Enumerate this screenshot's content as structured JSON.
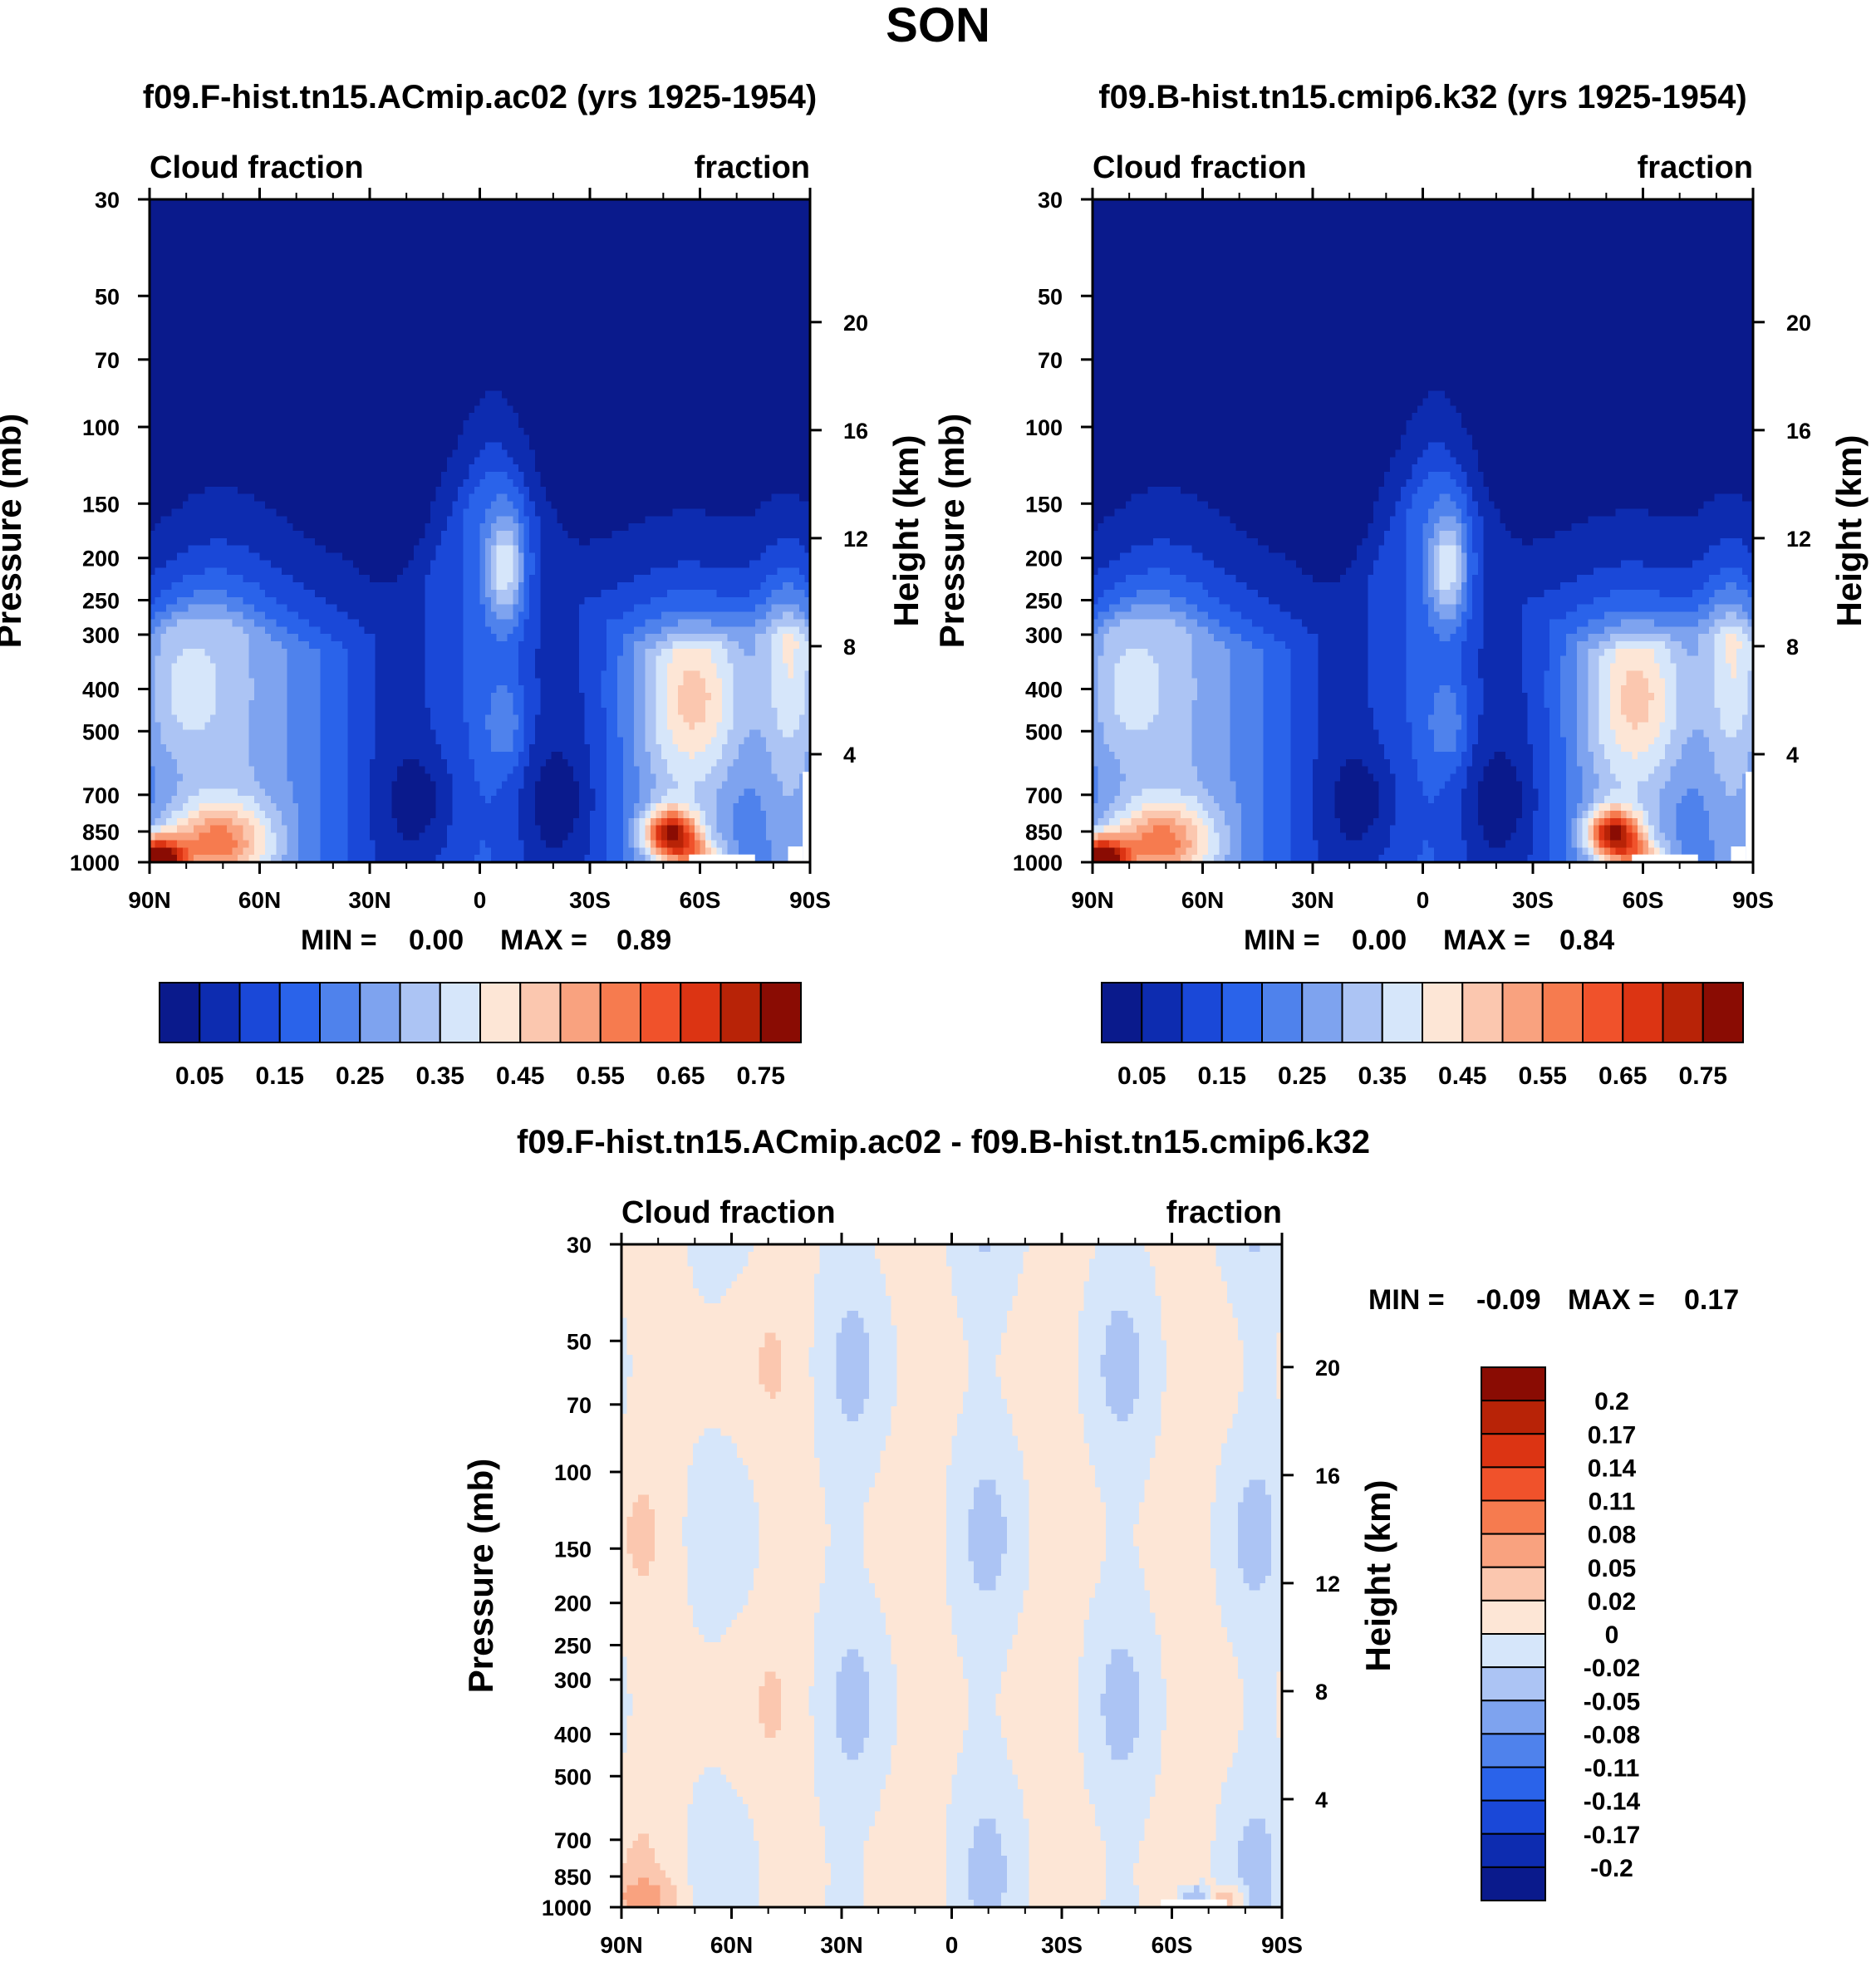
{
  "figure_title": "SON",
  "chart_data": [
    {
      "type": "heatmap",
      "id": "panel_a",
      "title": "f09.F-hist.tn15.ACmip.ac02 (yrs 1925-1954)",
      "left_label": "Cloud fraction",
      "right_label": "fraction",
      "ylabel": "Pressure (mb)",
      "ylabel_right": "Height (km)",
      "x_ticks": [
        "90N",
        "60N",
        "30N",
        "0",
        "30S",
        "60S",
        "90S"
      ],
      "x_range": [
        90,
        -90
      ],
      "pressure_ticks": [
        30,
        50,
        70,
        100,
        150,
        200,
        250,
        300,
        400,
        500,
        700,
        850,
        1000
      ],
      "height_ticks": [
        20,
        16,
        12,
        8,
        4
      ],
      "min_label": "MIN =",
      "min_value": "0.00",
      "max_label": "MAX =",
      "max_value": "0.89",
      "colorbar_labels": [
        "0.05",
        "0.15",
        "0.25",
        "0.35",
        "0.45",
        "0.55",
        "0.65",
        "0.75"
      ],
      "contour_levels": [
        0.05,
        0.1,
        0.15,
        0.2,
        0.25,
        0.3,
        0.35,
        0.4,
        0.45,
        0.5,
        0.55,
        0.6,
        0.65,
        0.7,
        0.75
      ]
    },
    {
      "type": "heatmap",
      "id": "panel_b",
      "title": "f09.B-hist.tn15.cmip6.k32 (yrs 1925-1954)",
      "left_label": "Cloud fraction",
      "right_label": "fraction",
      "ylabel": "Pressure (mb)",
      "ylabel_right": "Height (km)",
      "x_ticks": [
        "90N",
        "60N",
        "30N",
        "0",
        "30S",
        "60S",
        "90S"
      ],
      "x_range": [
        90,
        -90
      ],
      "pressure_ticks": [
        30,
        50,
        70,
        100,
        150,
        200,
        250,
        300,
        400,
        500,
        700,
        850,
        1000
      ],
      "height_ticks": [
        20,
        16,
        12,
        8,
        4
      ],
      "min_label": "MIN =",
      "min_value": "0.00",
      "max_label": "MAX =",
      "max_value": "0.84",
      "colorbar_labels": [
        "0.05",
        "0.15",
        "0.25",
        "0.35",
        "0.45",
        "0.55",
        "0.65",
        "0.75"
      ],
      "contour_levels": [
        0.05,
        0.1,
        0.15,
        0.2,
        0.25,
        0.3,
        0.35,
        0.4,
        0.45,
        0.5,
        0.55,
        0.6,
        0.65,
        0.7,
        0.75
      ]
    },
    {
      "type": "heatmap",
      "id": "panel_diff",
      "title": "f09.F-hist.tn15.ACmip.ac02 - f09.B-hist.tn15.cmip6.k32",
      "left_label": "Cloud fraction",
      "right_label": "fraction",
      "ylabel": "Pressure (mb)",
      "ylabel_right": "Height (km)",
      "x_ticks": [
        "90N",
        "60N",
        "30N",
        "0",
        "30S",
        "60S",
        "90S"
      ],
      "x_range": [
        90,
        -90
      ],
      "pressure_ticks": [
        30,
        50,
        70,
        100,
        150,
        200,
        250,
        300,
        400,
        500,
        700,
        850,
        1000
      ],
      "height_ticks": [
        20,
        16,
        12,
        8,
        4
      ],
      "min_label": "MIN =",
      "min_value": "-0.09",
      "max_label": "MAX =",
      "max_value": "0.17",
      "colorbar_labels": [
        "0.2",
        "0.17",
        "0.14",
        "0.11",
        "0.08",
        "0.05",
        "0.02",
        "0",
        "-0.02",
        "-0.05",
        "-0.08",
        "-0.11",
        "-0.14",
        "-0.17",
        "-0.2"
      ]
    }
  ],
  "palettes": {
    "sequential": [
      "#0a1a8c",
      "#0d2cb0",
      "#1a48d8",
      "#2a63ea",
      "#4f82ec",
      "#7ea3ef",
      "#acc4f4",
      "#d6e6fa",
      "#fde6d6",
      "#fbc7af",
      "#f9a27f",
      "#f67b4f",
      "#f0522b",
      "#dc3413",
      "#b82307",
      "#8a0c03"
    ],
    "diverging": [
      "#8a0c03",
      "#b82307",
      "#dc3413",
      "#f0522b",
      "#f67b4f",
      "#f9a27f",
      "#fbc7af",
      "#fde6d6",
      "#d6e6fa",
      "#acc4f4",
      "#7ea3ef",
      "#4f82ec",
      "#2a63ea",
      "#1a48d8",
      "#0d2cb0",
      "#0a1a8c"
    ]
  }
}
